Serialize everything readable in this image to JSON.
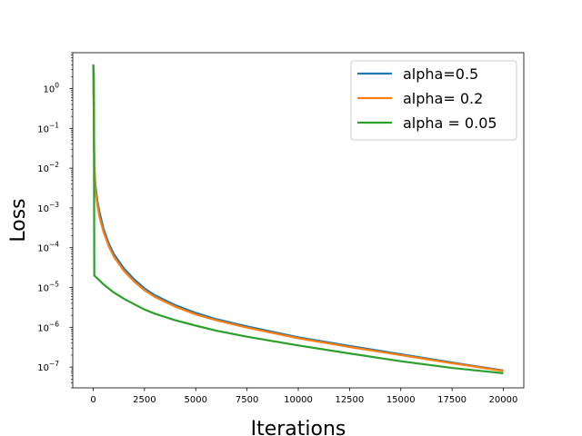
{
  "chart_data": {
    "type": "line",
    "title": "",
    "xlabel": "Iterations",
    "ylabel": "Loss",
    "xlim": [
      -1000,
      21000
    ],
    "ylim": [
      3e-08,
      8
    ],
    "yscale": "log",
    "grid": false,
    "legend_position": "top-right",
    "xticks": [
      {
        "value": 0,
        "label": "0"
      },
      {
        "value": 2500,
        "label": "2500"
      },
      {
        "value": 5000,
        "label": "5000"
      },
      {
        "value": 7500,
        "label": "7500"
      },
      {
        "value": 10000,
        "label": "10000"
      },
      {
        "value": 12500,
        "label": "12500"
      },
      {
        "value": 15000,
        "label": "15000"
      },
      {
        "value": 17500,
        "label": "17500"
      },
      {
        "value": 20000,
        "label": "20000"
      }
    ],
    "yticks": [
      {
        "value": 1.0,
        "base": "10",
        "exp": "0"
      },
      {
        "value": 0.1,
        "base": "10",
        "exp": "−1"
      },
      {
        "value": 0.01,
        "base": "10",
        "exp": "−2"
      },
      {
        "value": 0.001,
        "base": "10",
        "exp": "−3"
      },
      {
        "value": 0.0001,
        "base": "10",
        "exp": "−4"
      },
      {
        "value": 1e-05,
        "base": "10",
        "exp": "−5"
      },
      {
        "value": 1e-06,
        "base": "10",
        "exp": "−6"
      },
      {
        "value": 1e-07,
        "base": "10",
        "exp": "−7"
      }
    ],
    "series": [
      {
        "name": "alpha=0.5",
        "color": "#1f77b4",
        "points": [
          [
            0,
            4.0
          ],
          [
            20,
            0.5
          ],
          [
            50,
            0.012
          ],
          [
            100,
            0.004
          ],
          [
            200,
            0.0015
          ],
          [
            300,
            0.0008
          ],
          [
            500,
            0.0003
          ],
          [
            750,
            0.00013
          ],
          [
            1000,
            7e-05
          ],
          [
            1500,
            3e-05
          ],
          [
            2000,
            1.6e-05
          ],
          [
            2500,
            9.5e-06
          ],
          [
            3000,
            6.4e-06
          ],
          [
            4000,
            3.6e-06
          ],
          [
            5000,
            2.3e-06
          ],
          [
            6000,
            1.6e-06
          ],
          [
            7500,
            1.05e-06
          ],
          [
            10000,
            5.6e-07
          ],
          [
            12500,
            3.4e-07
          ],
          [
            15000,
            2.1e-07
          ],
          [
            17500,
            1.3e-07
          ],
          [
            20000,
            8.2e-08
          ]
        ]
      },
      {
        "name": "alpha= 0.2",
        "color": "#ff7f0e",
        "points": [
          [
            0,
            4.0
          ],
          [
            20,
            0.5
          ],
          [
            50,
            0.01
          ],
          [
            100,
            0.003
          ],
          [
            200,
            0.0012
          ],
          [
            300,
            0.0006
          ],
          [
            500,
            0.00025
          ],
          [
            750,
            0.00011
          ],
          [
            1000,
            6e-05
          ],
          [
            1500,
            2.6e-05
          ],
          [
            2000,
            1.4e-05
          ],
          [
            2500,
            8.5e-06
          ],
          [
            3000,
            5.8e-06
          ],
          [
            4000,
            3.3e-06
          ],
          [
            5000,
            2.1e-06
          ],
          [
            6000,
            1.5e-06
          ],
          [
            7500,
            9.8e-07
          ],
          [
            10000,
            5.3e-07
          ],
          [
            12500,
            3.2e-07
          ],
          [
            15000,
            2e-07
          ],
          [
            17500,
            1.25e-07
          ],
          [
            20000,
            8e-08
          ]
        ]
      },
      {
        "name": "alpha = 0.05",
        "color": "#2ca02c",
        "points": [
          [
            0,
            4.0
          ],
          [
            30,
            2.0
          ],
          [
            50,
            2e-05
          ],
          [
            250,
            1.6e-05
          ],
          [
            500,
            1.2e-05
          ],
          [
            1000,
            7.5e-06
          ],
          [
            1500,
            5.2e-06
          ],
          [
            2000,
            3.8e-06
          ],
          [
            2500,
            2.8e-06
          ],
          [
            3000,
            2.2e-06
          ],
          [
            4000,
            1.5e-06
          ],
          [
            5000,
            1.1e-06
          ],
          [
            6000,
            8.2e-07
          ],
          [
            7500,
            5.8e-07
          ],
          [
            10000,
            3.5e-07
          ],
          [
            12500,
            2.2e-07
          ],
          [
            15000,
            1.4e-07
          ],
          [
            17500,
            9.5e-08
          ],
          [
            20000,
            7e-08
          ]
        ]
      }
    ]
  }
}
